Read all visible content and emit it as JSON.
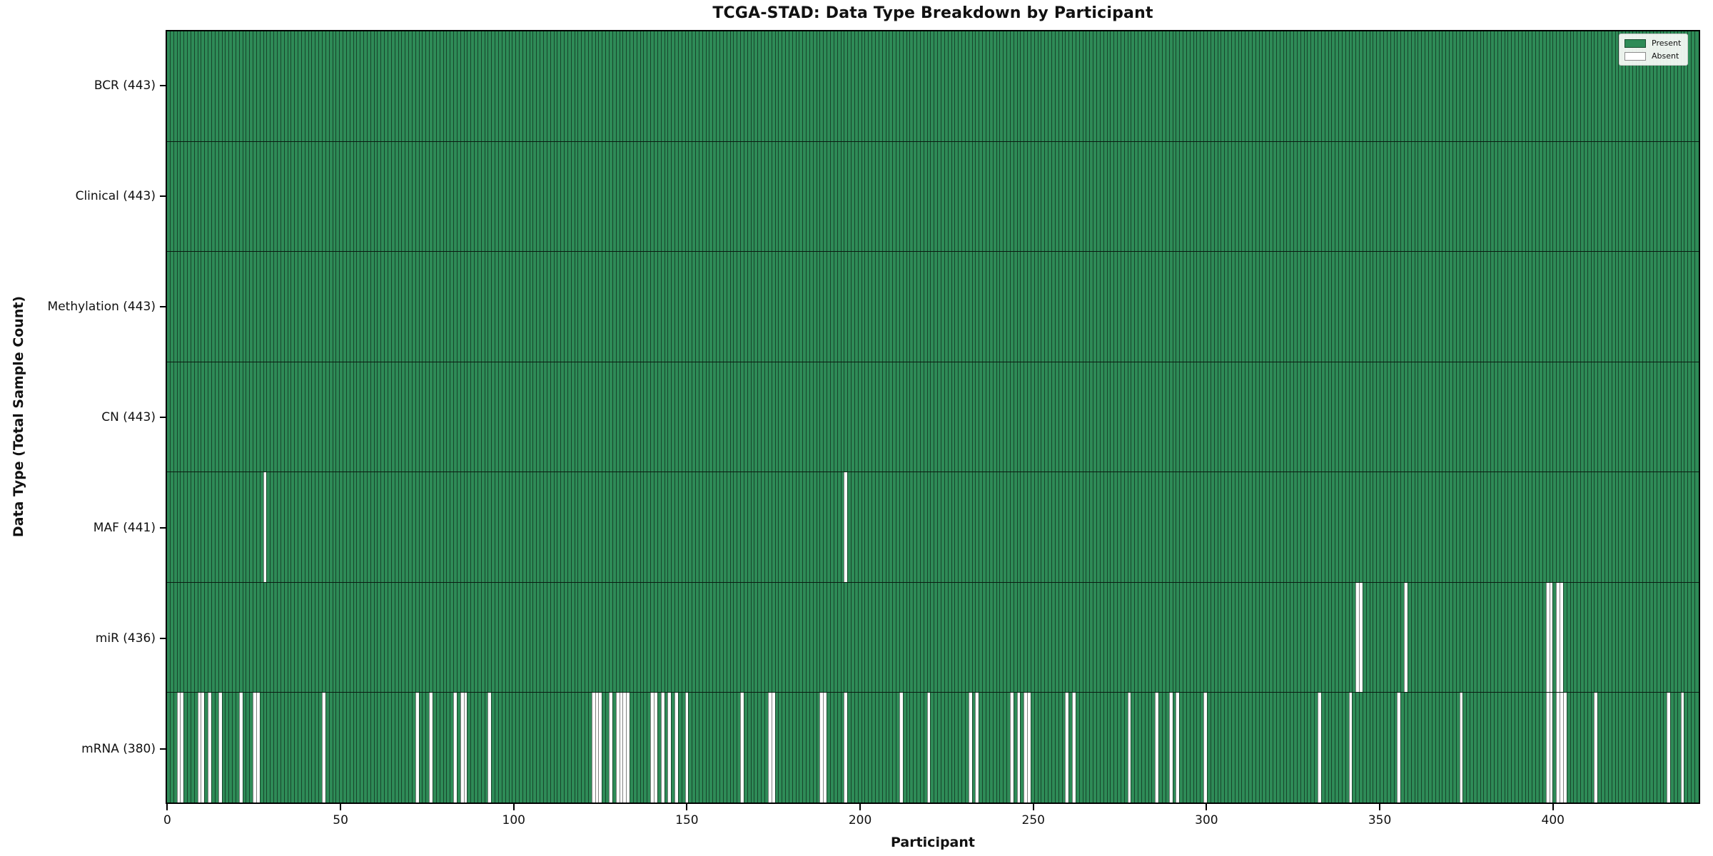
{
  "title": "TCGA-STAD: Data Type Breakdown by Participant",
  "x_axis": {
    "label": "Participant",
    "ticks": [
      0,
      50,
      100,
      150,
      200,
      250,
      300,
      350,
      400
    ],
    "min": 0,
    "max": 443
  },
  "y_axis": {
    "label": "Data Type (Total Sample Count)"
  },
  "legend": {
    "position": "upper right",
    "items": [
      {
        "label": "Present",
        "color": "#2e8b57"
      },
      {
        "label": "Absent",
        "color": "#ffffff"
      }
    ]
  },
  "colors": {
    "present": "#2e8b57",
    "absent": "#ffffff",
    "bar_edge": "rgba(0,0,0,0.5)",
    "plot_border": "#000000",
    "background": "#ffffff"
  },
  "chart_data": {
    "type": "heatmap",
    "subtype": "presence-absence grid, one column per participant",
    "n_participants": 443,
    "grid": true,
    "rows": [
      {
        "label": "BCR (443)",
        "name": "BCR",
        "total": 443,
        "absent_participants": []
      },
      {
        "label": "Clinical (443)",
        "name": "Clinical",
        "total": 443,
        "absent_participants": []
      },
      {
        "label": "Methylation (443)",
        "name": "Methylation",
        "total": 443,
        "absent_participants": []
      },
      {
        "label": "CN (443)",
        "name": "CN",
        "total": 443,
        "absent_participants": []
      },
      {
        "label": "MAF (441)",
        "name": "MAF",
        "total": 441,
        "absent_participants": [
          28,
          196
        ]
      },
      {
        "label": "miR (436)",
        "name": "miR",
        "total": 436,
        "absent_participants": [
          344,
          345,
          358,
          399,
          400,
          402,
          403
        ]
      },
      {
        "label": "mRNA (380)",
        "name": "mRNA",
        "total": 380,
        "absent_participants": [
          3,
          4,
          9,
          10,
          12,
          15,
          21,
          25,
          26,
          45,
          72,
          76,
          83,
          85,
          86,
          93,
          123,
          124,
          125,
          128,
          130,
          131,
          132,
          133,
          140,
          141,
          143,
          145,
          147,
          150,
          166,
          174,
          175,
          189,
          190,
          196,
          212,
          220,
          232,
          234,
          244,
          246,
          248,
          249,
          260,
          262,
          278,
          286,
          290,
          292,
          300,
          333,
          342,
          356,
          374,
          399,
          400,
          402,
          403,
          404,
          413,
          434,
          438
        ]
      }
    ]
  }
}
